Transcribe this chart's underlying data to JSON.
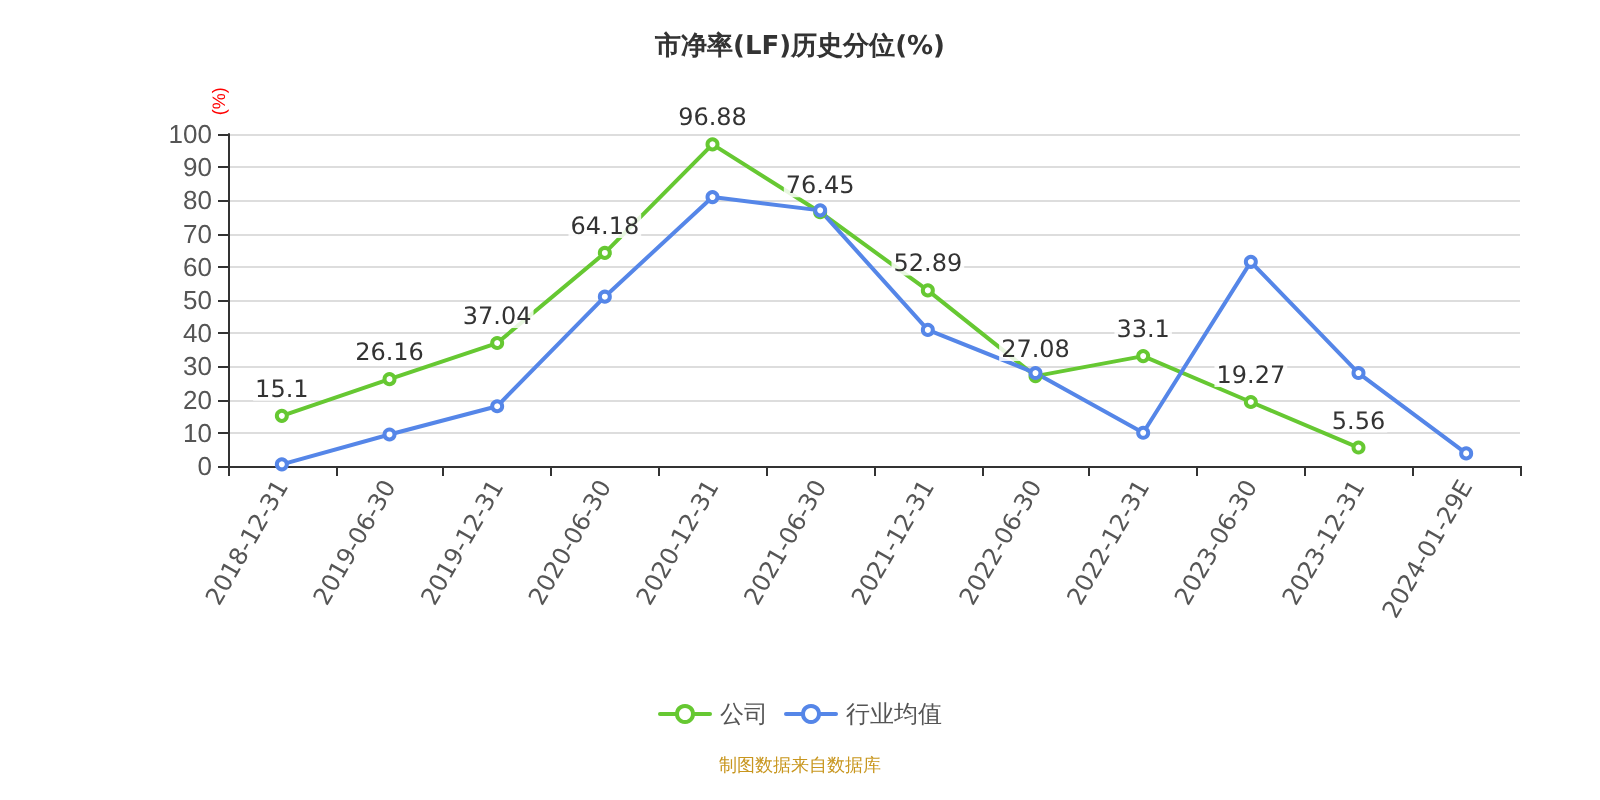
{
  "chart_data": {
    "type": "line",
    "title": "市净率(LF)历史分位(%)",
    "ylabel": "(%)",
    "categories": [
      "2018-12-31",
      "2019-06-30",
      "2019-12-31",
      "2020-06-30",
      "2020-12-31",
      "2021-06-30",
      "2021-12-31",
      "2022-06-30",
      "2022-12-31",
      "2023-06-30",
      "2023-12-31",
      "2024-01-29E"
    ],
    "series": [
      {
        "name": "公司",
        "color": "#66c832",
        "values": [
          15.1,
          26.16,
          37.04,
          64.18,
          96.88,
          76.45,
          52.89,
          27.08,
          33.1,
          19.27,
          5.56,
          null
        ],
        "value_labels": [
          "15.1",
          "26.16",
          "37.04",
          "64.18",
          "96.88",
          "76.45",
          "52.89",
          "27.08",
          "33.1",
          "19.27",
          "5.56",
          null
        ]
      },
      {
        "name": "行业均值",
        "color": "#5586e8",
        "values": [
          0.5,
          9.5,
          18,
          51,
          81,
          77,
          41,
          28,
          10,
          61.5,
          28,
          3.8
        ]
      }
    ],
    "ylim": [
      0,
      100
    ],
    "yticks": [
      0,
      10,
      20,
      30,
      40,
      50,
      60,
      70,
      80,
      90,
      100
    ],
    "grid": "y",
    "legend": "bottom",
    "marker": "circle",
    "line_style": "solid",
    "annotations": [
      "制图数据来自数据库"
    ]
  }
}
